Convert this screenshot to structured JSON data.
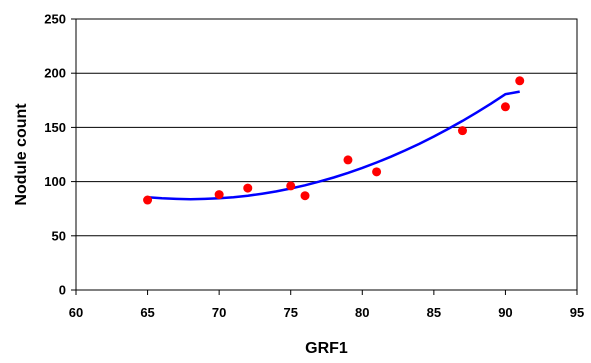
{
  "chart_data": {
    "type": "scatter",
    "title": "",
    "xlabel": "GRF1",
    "ylabel": "Nodule count",
    "xlim": [
      60,
      95
    ],
    "ylim": [
      0,
      250
    ],
    "xticks": [
      60,
      65,
      70,
      75,
      80,
      85,
      90,
      95
    ],
    "yticks": [
      0,
      50,
      100,
      150,
      200,
      250
    ],
    "grid": "horizontal",
    "legend": "none",
    "series": [
      {
        "type": "scatter",
        "color": "#ff0000",
        "points": [
          {
            "x": 65,
            "y": 83
          },
          {
            "x": 70,
            "y": 88
          },
          {
            "x": 72,
            "y": 94
          },
          {
            "x": 75,
            "y": 96
          },
          {
            "x": 76,
            "y": 87
          },
          {
            "x": 79,
            "y": 120
          },
          {
            "x": 81,
            "y": 109
          },
          {
            "x": 87,
            "y": 147
          },
          {
            "x": 90,
            "y": 169
          },
          {
            "x": 91,
            "y": 193
          }
        ]
      },
      {
        "type": "trendline",
        "color": "#0000ff",
        "x": [
          65,
          66,
          67,
          68,
          69,
          70,
          71,
          72,
          73,
          74,
          75,
          76,
          77,
          78,
          79,
          80,
          81,
          82,
          83,
          84,
          85,
          86,
          87,
          88,
          89,
          90,
          91
        ],
        "y": [
          85.5,
          84.6,
          84.0,
          83.8,
          84.0,
          84.6,
          85.6,
          87.0,
          88.8,
          91.0,
          93.6,
          96.6,
          100.0,
          103.8,
          108.0,
          112.6,
          117.6,
          123.0,
          128.8,
          135.0,
          141.6,
          148.6,
          156.0,
          163.8,
          172.0,
          180.6,
          183.0
        ]
      }
    ]
  }
}
